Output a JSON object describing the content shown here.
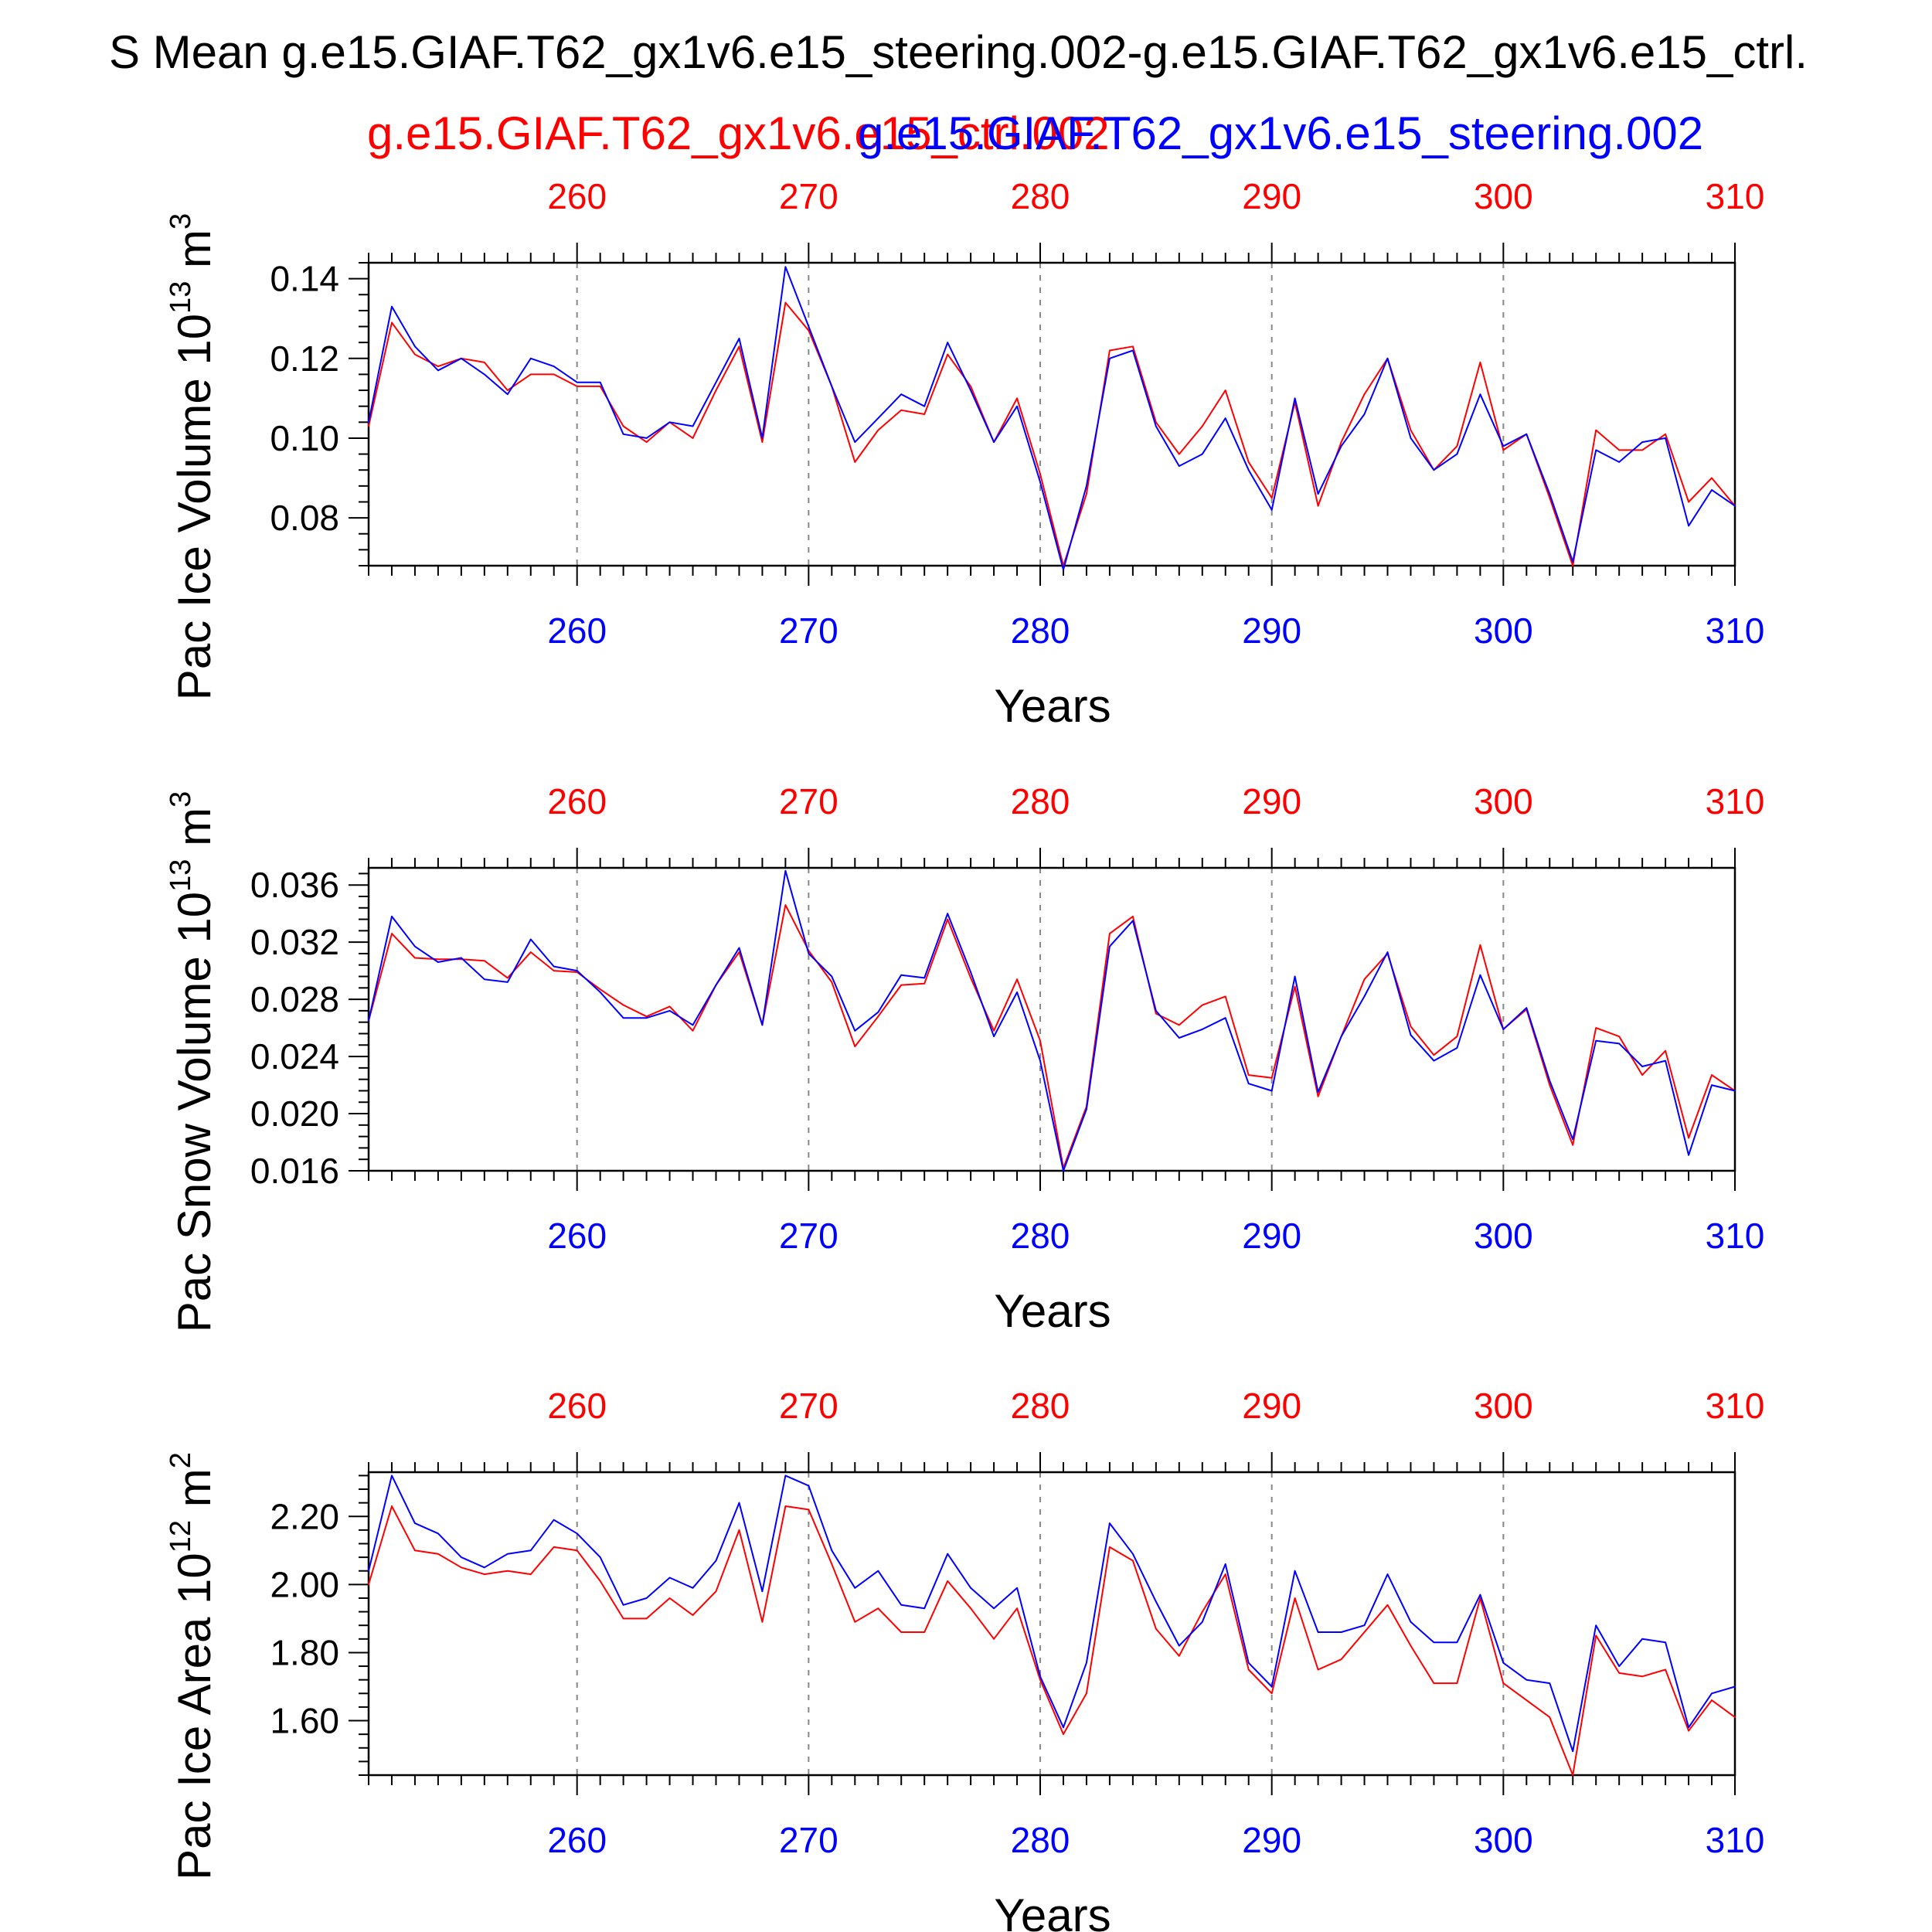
{
  "title": "S Mean g.e15.GIAF.T62_gx1v6.e15_steering.002-g.e15.GIAF.T62_gx1v6.e15_ctrl.",
  "legend": {
    "ctrl_label": "g.e15.GIAF.T62_gx1v6.e15_ctrl.002",
    "steering_label": "g.e15.GIAF.T62_gx1v6.e15_steering.002"
  },
  "colors": {
    "ctrl": "#ff0000",
    "steering": "#0000ff",
    "axis": "#000000",
    "grid": "#888888"
  },
  "chart_data": [
    {
      "type": "line",
      "ylabel": "Pac Ice Volume 10",
      "ylabel_exp": "13",
      "ylabel_unit": " m",
      "ylabel_unit_exp": "3",
      "xlabel": "Years",
      "xlim": [
        251,
        310
      ],
      "ylim": [
        0.068,
        0.144
      ],
      "xticks": [
        260,
        270,
        280,
        290,
        300,
        310
      ],
      "xtick_labels": [
        "260",
        "270",
        "280",
        "290",
        "300",
        "310"
      ],
      "yticks": [
        0.08,
        0.1,
        0.12,
        0.14
      ],
      "ytick_labels": [
        "0.08",
        "0.10",
        "0.12",
        "0.14"
      ],
      "grid": "vertical dashed at major x ticks",
      "x": [
        251,
        252,
        253,
        254,
        255,
        256,
        257,
        258,
        259,
        260,
        261,
        262,
        263,
        264,
        265,
        266,
        267,
        268,
        269,
        270,
        271,
        272,
        273,
        274,
        275,
        276,
        277,
        278,
        279,
        280,
        281,
        282,
        283,
        284,
        285,
        286,
        287,
        288,
        289,
        290,
        291,
        292,
        293,
        294,
        295,
        296,
        297,
        298,
        299,
        300,
        301,
        302,
        303,
        304,
        305,
        306,
        307,
        308,
        309,
        310
      ],
      "series": [
        {
          "name": "g.e15.GIAF.T62_gx1v6.e15_ctrl.002",
          "color": "#ff0000",
          "values": [
            0.103,
            0.129,
            0.121,
            0.118,
            0.12,
            0.119,
            0.112,
            0.116,
            0.116,
            0.113,
            0.113,
            0.103,
            0.099,
            0.104,
            0.1,
            0.112,
            0.123,
            0.099,
            0.134,
            0.127,
            0.113,
            0.094,
            0.102,
            0.107,
            0.106,
            0.121,
            0.113,
            0.099,
            0.11,
            0.091,
            0.068,
            0.086,
            0.122,
            0.123,
            0.104,
            0.096,
            0.103,
            0.112,
            0.094,
            0.085,
            0.109,
            0.083,
            0.099,
            0.111,
            0.12,
            0.102,
            0.092,
            0.098,
            0.119,
            0.097,
            0.101,
            0.085,
            0.068,
            0.102,
            0.097,
            0.097,
            0.101,
            0.084,
            0.09,
            0.083
          ]
        },
        {
          "name": "g.e15.GIAF.T62_gx1v6.e15_steering.002",
          "color": "#0000ff",
          "values": [
            0.104,
            0.133,
            0.123,
            0.117,
            0.12,
            0.116,
            0.111,
            0.12,
            0.118,
            0.114,
            0.114,
            0.101,
            0.1,
            0.104,
            0.103,
            0.114,
            0.125,
            0.1,
            0.143,
            0.128,
            0.113,
            0.099,
            0.105,
            0.111,
            0.108,
            0.124,
            0.112,
            0.099,
            0.108,
            0.089,
            0.067,
            0.088,
            0.12,
            0.122,
            0.103,
            0.093,
            0.096,
            0.105,
            0.092,
            0.082,
            0.11,
            0.086,
            0.098,
            0.106,
            0.12,
            0.1,
            0.092,
            0.096,
            0.111,
            0.098,
            0.101,
            0.086,
            0.069,
            0.097,
            0.094,
            0.099,
            0.1,
            0.078,
            0.087,
            0.083
          ]
        }
      ]
    },
    {
      "type": "line",
      "ylabel": "Pac Snow Volume 10",
      "ylabel_exp": "13",
      "ylabel_unit": " m",
      "ylabel_unit_exp": "3",
      "xlabel": "Years",
      "xlim": [
        251,
        310
      ],
      "ylim": [
        0.016,
        0.0372
      ],
      "xticks": [
        260,
        270,
        280,
        290,
        300,
        310
      ],
      "xtick_labels": [
        "260",
        "270",
        "280",
        "290",
        "300",
        "310"
      ],
      "yticks": [
        0.016,
        0.02,
        0.024,
        0.028,
        0.032,
        0.036
      ],
      "ytick_labels": [
        "0.016",
        "0.020",
        "0.024",
        "0.028",
        "0.032",
        "0.036"
      ],
      "grid": "vertical dashed at major x ticks",
      "x": [
        251,
        252,
        253,
        254,
        255,
        256,
        257,
        258,
        259,
        260,
        261,
        262,
        263,
        264,
        265,
        266,
        267,
        268,
        269,
        270,
        271,
        272,
        273,
        274,
        275,
        276,
        277,
        278,
        279,
        280,
        281,
        282,
        283,
        284,
        285,
        286,
        287,
        288,
        289,
        290,
        291,
        292,
        293,
        294,
        295,
        296,
        297,
        298,
        299,
        300,
        301,
        302,
        303,
        304,
        305,
        306,
        307,
        308,
        309,
        310
      ],
      "series": [
        {
          "name": "g.e15.GIAF.T62_gx1v6.e15_ctrl.002",
          "color": "#ff0000",
          "values": [
            0.0265,
            0.0326,
            0.0309,
            0.0308,
            0.0308,
            0.0307,
            0.0295,
            0.0313,
            0.03,
            0.0299,
            0.0287,
            0.0276,
            0.0268,
            0.0275,
            0.0258,
            0.029,
            0.0313,
            0.0262,
            0.0346,
            0.0314,
            0.0292,
            0.0247,
            0.0268,
            0.029,
            0.0291,
            0.0336,
            0.0295,
            0.0258,
            0.0294,
            0.0251,
            0.0162,
            0.0205,
            0.0326,
            0.0338,
            0.027,
            0.0262,
            0.0276,
            0.0282,
            0.0227,
            0.0225,
            0.0289,
            0.0212,
            0.0254,
            0.0294,
            0.0312,
            0.0261,
            0.0241,
            0.0254,
            0.0318,
            0.0259,
            0.0273,
            0.022,
            0.0178,
            0.026,
            0.0254,
            0.0227,
            0.0244,
            0.0183,
            0.0227,
            0.0216
          ]
        },
        {
          "name": "g.e15.GIAF.T62_gx1v6.e15_steering.002",
          "color": "#0000ff",
          "values": [
            0.0265,
            0.0338,
            0.0317,
            0.0306,
            0.0309,
            0.0294,
            0.0292,
            0.0322,
            0.0303,
            0.03,
            0.0285,
            0.0267,
            0.0267,
            0.0272,
            0.0262,
            0.029,
            0.0316,
            0.0262,
            0.037,
            0.0312,
            0.0296,
            0.0258,
            0.0271,
            0.0297,
            0.0295,
            0.034,
            0.0299,
            0.0254,
            0.0285,
            0.0237,
            0.016,
            0.0203,
            0.0317,
            0.0335,
            0.0272,
            0.0253,
            0.0259,
            0.0267,
            0.0221,
            0.0216,
            0.0296,
            0.0215,
            0.0254,
            0.0282,
            0.0313,
            0.0255,
            0.0237,
            0.0246,
            0.0297,
            0.0259,
            0.0274,
            0.0223,
            0.0182,
            0.0251,
            0.0249,
            0.0233,
            0.0237,
            0.0171,
            0.022,
            0.0216
          ]
        }
      ]
    },
    {
      "type": "line",
      "ylabel": "Pac Ice Area 10",
      "ylabel_exp": "12",
      "ylabel_unit": " m",
      "ylabel_unit_exp": "2",
      "xlabel": "Years",
      "xlim": [
        251,
        310
      ],
      "ylim": [
        1.44,
        2.33
      ],
      "xticks": [
        260,
        270,
        280,
        290,
        300,
        310
      ],
      "xtick_labels": [
        "260",
        "270",
        "280",
        "290",
        "300",
        "310"
      ],
      "yticks": [
        1.6,
        1.8,
        2.0,
        2.2
      ],
      "ytick_labels": [
        "1.60",
        "1.80",
        "2.00",
        "2.20"
      ],
      "grid": "vertical dashed at major x ticks",
      "x": [
        251,
        252,
        253,
        254,
        255,
        256,
        257,
        258,
        259,
        260,
        261,
        262,
        263,
        264,
        265,
        266,
        267,
        268,
        269,
        270,
        271,
        272,
        273,
        274,
        275,
        276,
        277,
        278,
        279,
        280,
        281,
        282,
        283,
        284,
        285,
        286,
        287,
        288,
        289,
        290,
        291,
        292,
        293,
        294,
        295,
        296,
        297,
        298,
        299,
        300,
        301,
        302,
        303,
        304,
        305,
        306,
        307,
        308,
        309,
        310
      ],
      "series": [
        {
          "name": "g.e15.GIAF.T62_gx1v6.e15_ctrl.002",
          "color": "#ff0000",
          "values": [
            2.0,
            2.23,
            2.1,
            2.09,
            2.05,
            2.03,
            2.04,
            2.03,
            2.11,
            2.1,
            2.01,
            1.9,
            1.9,
            1.96,
            1.91,
            1.98,
            2.16,
            1.89,
            2.23,
            2.22,
            2.06,
            1.89,
            1.93,
            1.86,
            1.86,
            2.01,
            1.93,
            1.84,
            1.93,
            1.72,
            1.56,
            1.68,
            2.11,
            2.07,
            1.87,
            1.79,
            1.92,
            2.03,
            1.75,
            1.68,
            1.96,
            1.75,
            1.78,
            1.86,
            1.94,
            1.82,
            1.71,
            1.71,
            1.96,
            1.71,
            1.66,
            1.61,
            1.44,
            1.85,
            1.74,
            1.73,
            1.75,
            1.57,
            1.66,
            1.61
          ]
        },
        {
          "name": "g.e15.GIAF.T62_gx1v6.e15_steering.002",
          "color": "#0000ff",
          "values": [
            2.04,
            2.32,
            2.18,
            2.15,
            2.08,
            2.05,
            2.09,
            2.1,
            2.19,
            2.15,
            2.08,
            1.94,
            1.96,
            2.02,
            1.99,
            2.07,
            2.24,
            1.98,
            2.32,
            2.29,
            2.1,
            1.99,
            2.04,
            1.94,
            1.93,
            2.09,
            1.99,
            1.93,
            1.99,
            1.73,
            1.58,
            1.77,
            2.18,
            2.09,
            1.95,
            1.82,
            1.89,
            2.06,
            1.77,
            1.7,
            2.04,
            1.86,
            1.86,
            1.88,
            2.03,
            1.89,
            1.83,
            1.83,
            1.97,
            1.77,
            1.72,
            1.71,
            1.51,
            1.88,
            1.76,
            1.84,
            1.83,
            1.58,
            1.68,
            1.7
          ]
        }
      ]
    }
  ]
}
